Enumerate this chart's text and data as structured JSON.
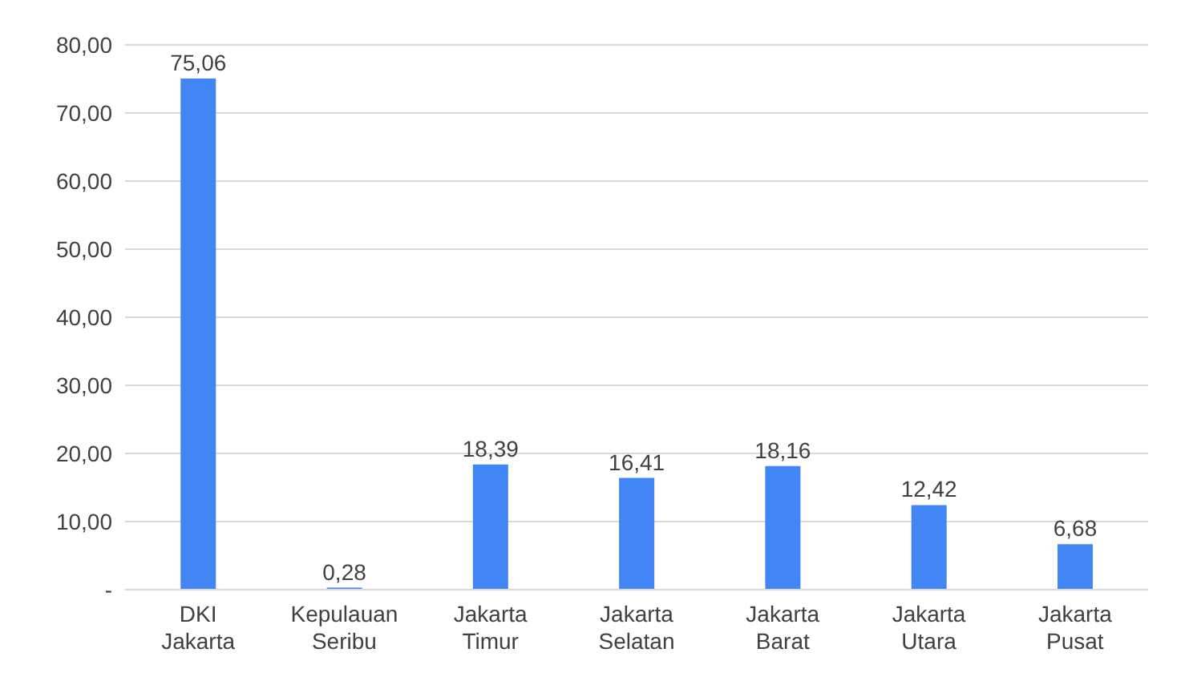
{
  "chart_data": {
    "type": "bar",
    "categories": [
      "DKI Jakarta",
      "Kepulauan Seribu",
      "Jakarta Timur",
      "Jakarta Selatan",
      "Jakarta Barat",
      "Jakarta Utara",
      "Jakarta Pusat"
    ],
    "values": [
      75.06,
      0.28,
      18.39,
      16.41,
      18.16,
      12.42,
      6.68
    ],
    "value_labels": [
      "75,06",
      "0,28",
      "18,39",
      "16,41",
      "18,16",
      "12,42",
      "6,68"
    ],
    "color": "#4285f4",
    "ylim": [
      0,
      80
    ],
    "yticks": [
      {
        "value": 0,
        "label": "-"
      },
      {
        "value": 10,
        "label": "10,00"
      },
      {
        "value": 20,
        "label": "20,00"
      },
      {
        "value": 30,
        "label": "30,00"
      },
      {
        "value": 40,
        "label": "40,00"
      },
      {
        "value": 50,
        "label": "50,00"
      },
      {
        "value": 60,
        "label": "60,00"
      },
      {
        "value": 70,
        "label": "70,00"
      },
      {
        "value": 80,
        "label": "80,00"
      }
    ],
    "grid": "y"
  }
}
